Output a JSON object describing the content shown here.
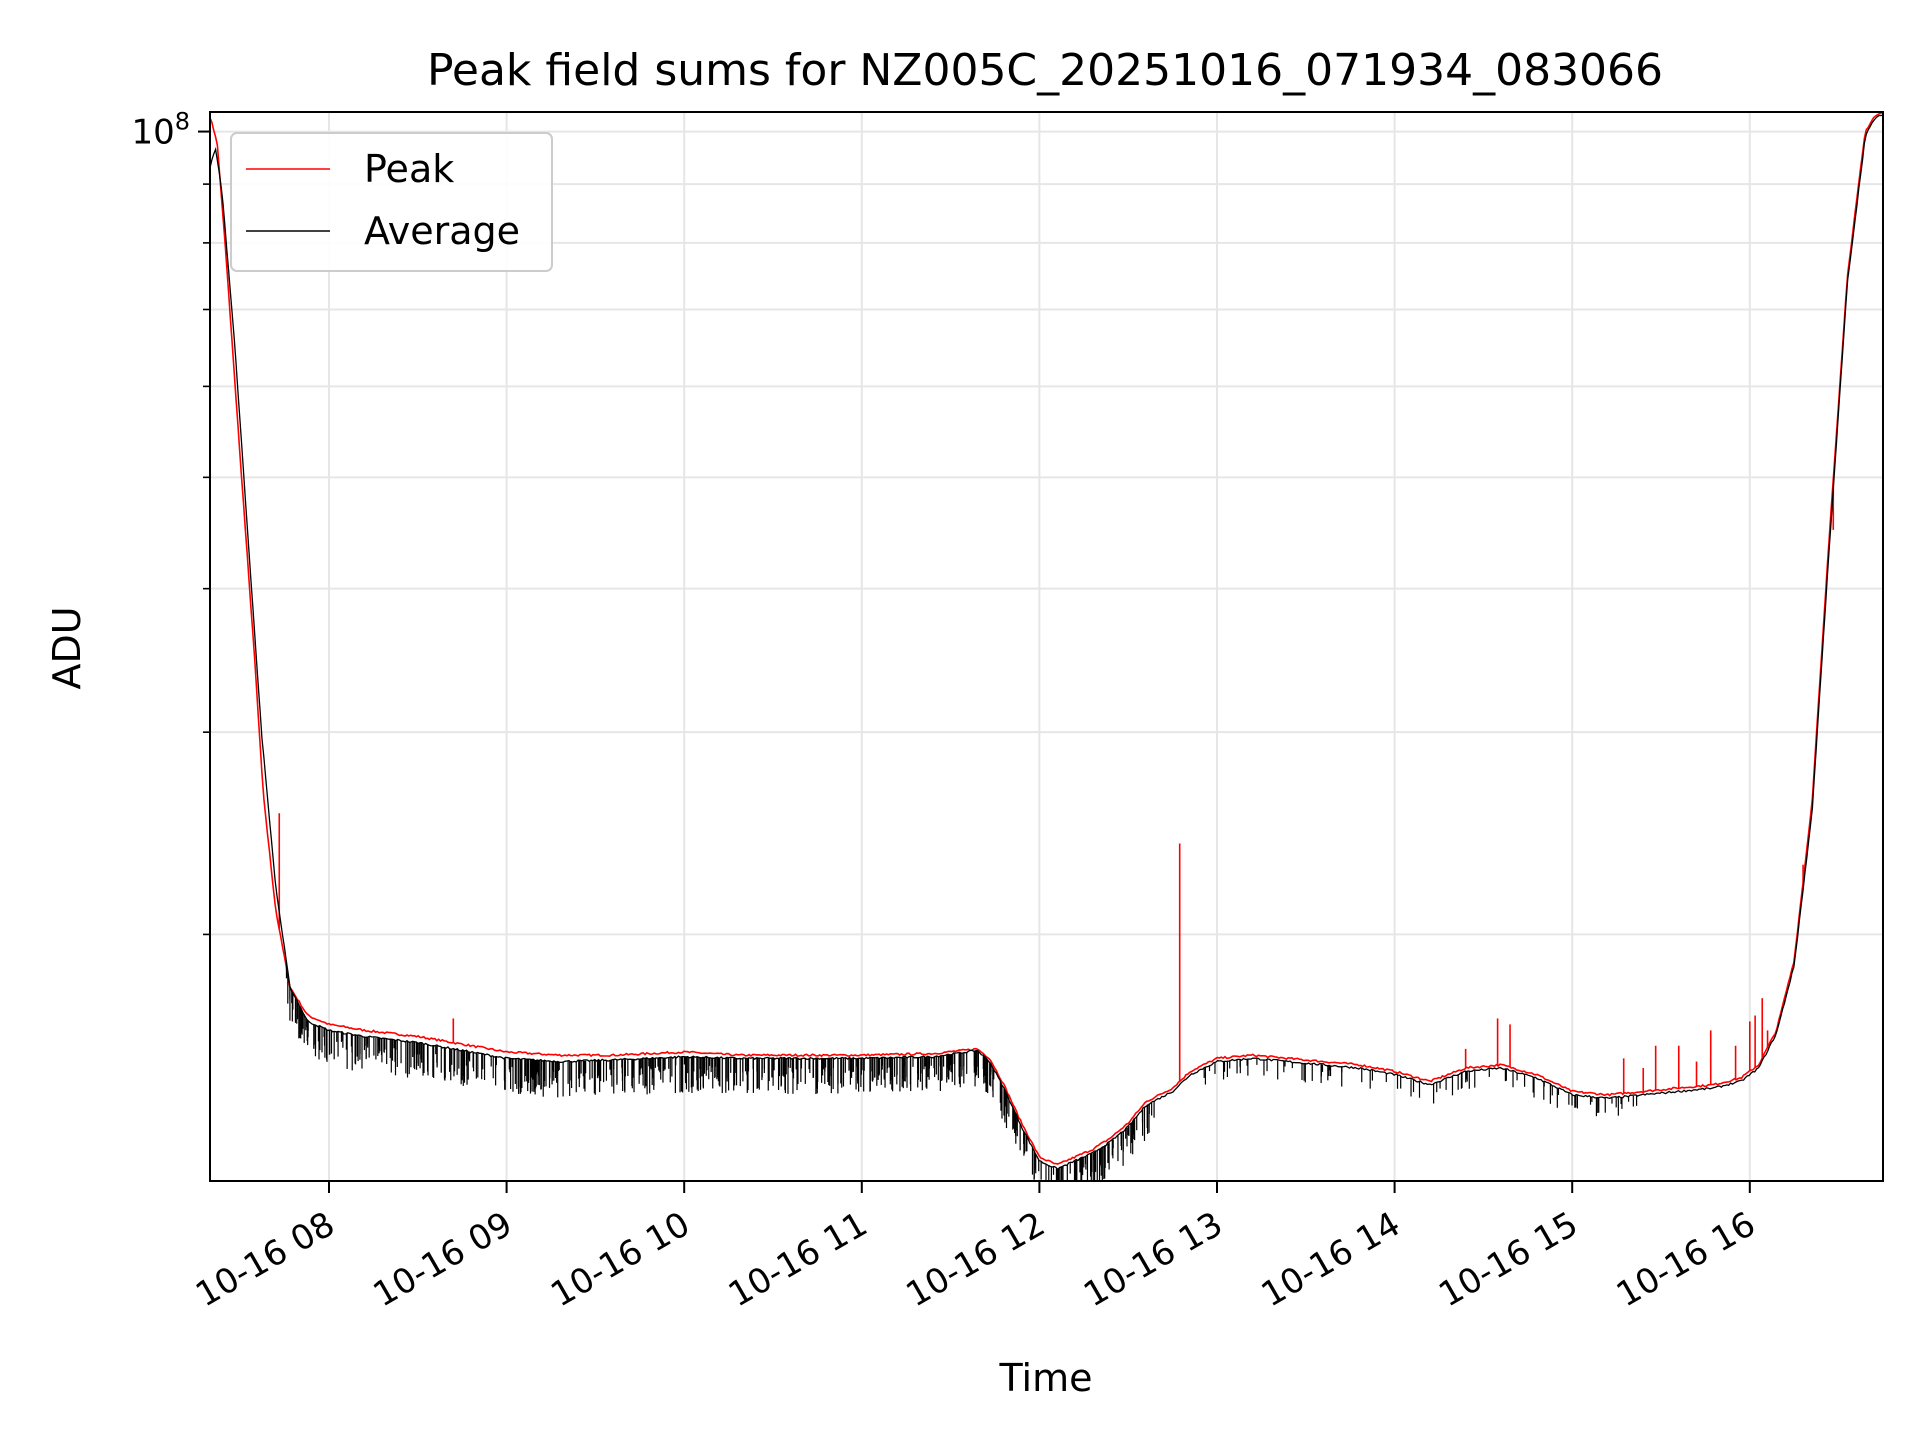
{
  "chart_data": {
    "type": "line",
    "title": "Peak field sums for NZ005C_20251016_071934_083066",
    "xlabel": "Time",
    "ylabel": "ADU",
    "yscale": "log",
    "ylim": [
      12200000,
      104000000
    ],
    "xlim": [
      7.33,
      16.75
    ],
    "grid": true,
    "legend_position": "top-left",
    "y_major_ticks": [
      {
        "value": 100000000,
        "base": "10",
        "exp": "8"
      }
    ],
    "y_minor_ticks": [
      20000000,
      30000000,
      40000000,
      50000000,
      60000000,
      70000000,
      80000000,
      90000000
    ],
    "x_ticks": [
      {
        "value": 8,
        "label": "10-16 08"
      },
      {
        "value": 9,
        "label": "10-16 09"
      },
      {
        "value": 10,
        "label": "10-16 10"
      },
      {
        "value": 11,
        "label": "10-16 11"
      },
      {
        "value": 12,
        "label": "10-16 12"
      },
      {
        "value": 13,
        "label": "10-16 13"
      },
      {
        "value": 14,
        "label": "10-16 14"
      },
      {
        "value": 15,
        "label": "10-16 15"
      },
      {
        "value": 16,
        "label": "10-16 16"
      }
    ],
    "x_units": "hours (2025-10-16)",
    "series": [
      {
        "name": "Peak",
        "color": "#ff0000",
        "x": [
          7.33,
          7.37,
          7.42,
          7.5,
          7.58,
          7.63,
          7.7,
          7.78,
          7.88,
          8.0,
          8.2,
          8.5,
          8.8,
          9.0,
          9.3,
          9.6,
          10.0,
          10.3,
          10.6,
          11.0,
          11.4,
          11.65,
          11.72,
          11.8,
          11.9,
          12.0,
          12.1,
          12.2,
          12.3,
          12.4,
          12.5,
          12.6,
          12.75,
          12.85,
          13.0,
          13.2,
          13.4,
          13.6,
          13.8,
          14.0,
          14.2,
          14.4,
          14.6,
          14.8,
          15.0,
          15.2,
          15.4,
          15.6,
          15.8,
          15.95,
          16.05,
          16.15,
          16.25,
          16.35,
          16.45,
          16.55,
          16.65,
          16.7,
          16.75
        ],
        "values": [
          103000000,
          98000000,
          78000000,
          52000000,
          35000000,
          26500000,
          21000000,
          18000000,
          17000000,
          16700000,
          16500000,
          16300000,
          16000000,
          15800000,
          15700000,
          15700000,
          15800000,
          15700000,
          15700000,
          15700000,
          15750000,
          15900000,
          15600000,
          14800000,
          13700000,
          12800000,
          12600000,
          12800000,
          13000000,
          13300000,
          13700000,
          14300000,
          14700000,
          15200000,
          15600000,
          15700000,
          15600000,
          15500000,
          15400000,
          15200000,
          14900000,
          15300000,
          15400000,
          15100000,
          14600000,
          14500000,
          14600000,
          14700000,
          14800000,
          15000000,
          15400000,
          16500000,
          19000000,
          26000000,
          45000000,
          75000000,
          100000000,
          103000000,
          104000000
        ],
        "spikes": [
          {
            "x": 7.72,
            "value": 25500000
          },
          {
            "x": 8.7,
            "value": 16900000
          },
          {
            "x": 12.79,
            "value": 24000000
          },
          {
            "x": 14.4,
            "value": 15900000
          },
          {
            "x": 14.58,
            "value": 16900000
          },
          {
            "x": 14.65,
            "value": 16700000
          },
          {
            "x": 15.29,
            "value": 15600000
          },
          {
            "x": 15.4,
            "value": 15300000
          },
          {
            "x": 15.47,
            "value": 16000000
          },
          {
            "x": 15.6,
            "value": 16000000
          },
          {
            "x": 15.7,
            "value": 15500000
          },
          {
            "x": 15.78,
            "value": 16500000
          },
          {
            "x": 15.92,
            "value": 16000000
          },
          {
            "x": 16.0,
            "value": 16800000
          },
          {
            "x": 16.03,
            "value": 17000000
          },
          {
            "x": 16.07,
            "value": 17600000
          },
          {
            "x": 16.1,
            "value": 16500000
          },
          {
            "x": 16.3,
            "value": 23000000
          },
          {
            "x": 16.47,
            "value": 45000000
          }
        ]
      },
      {
        "name": "Average",
        "color": "#000000",
        "x": [
          7.33,
          7.36,
          7.4,
          7.47,
          7.55,
          7.62,
          7.7,
          7.78,
          7.88,
          8.0,
          8.2,
          8.5,
          8.8,
          9.0,
          9.3,
          9.6,
          10.0,
          10.3,
          10.6,
          11.0,
          11.4,
          11.65,
          11.72,
          11.8,
          11.9,
          12.0,
          12.1,
          12.2,
          12.3,
          12.4,
          12.5,
          12.6,
          12.75,
          12.85,
          13.0,
          13.2,
          13.4,
          13.6,
          13.8,
          14.0,
          14.2,
          14.4,
          14.6,
          14.8,
          15.0,
          15.2,
          15.4,
          15.6,
          15.8,
          15.95,
          16.05,
          16.15,
          16.25,
          16.35,
          16.45,
          16.55,
          16.65,
          16.7,
          16.75
        ],
        "values": [
          93000000,
          97000000,
          88000000,
          65000000,
          43000000,
          30000000,
          22000000,
          18000000,
          16800000,
          16500000,
          16300000,
          16100000,
          15800000,
          15600000,
          15500000,
          15550000,
          15650000,
          15600000,
          15600000,
          15600000,
          15650000,
          15850000,
          15500000,
          14700000,
          13600000,
          12700000,
          12500000,
          12700000,
          12900000,
          13200000,
          13600000,
          14200000,
          14600000,
          15100000,
          15500000,
          15600000,
          15500000,
          15400000,
          15300000,
          15100000,
          14800000,
          15200000,
          15300000,
          15000000,
          14500000,
          14400000,
          14500000,
          14600000,
          14700000,
          14900000,
          15300000,
          16400000,
          18800000,
          25500000,
          44000000,
          74000000,
          99000000,
          102500000,
          103500000
        ],
        "noise": "downward spikes throughout 07:40–12:40 reaching ~1.0–1.1 M ADU below the average; sparser dips through 14:00–15:20"
      }
    ]
  }
}
